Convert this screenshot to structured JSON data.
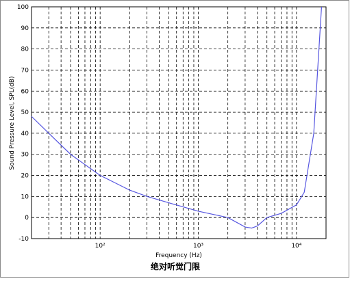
{
  "chart_data": {
    "type": "line",
    "title": "绝对听觉门限",
    "xlabel": "Frequency (Hz)",
    "ylabel": "Sound Pressure Level, SPL(dB)",
    "log_x": true,
    "grid": true,
    "xlim": [
      20,
      20000
    ],
    "ylim": [
      -10,
      100
    ],
    "xticks": [
      {
        "value": 100,
        "label": "10²"
      },
      {
        "value": 1000,
        "label": "10³"
      },
      {
        "value": 10000,
        "label": "10⁴"
      }
    ],
    "xminor": [
      30,
      40,
      50,
      60,
      70,
      80,
      90,
      200,
      300,
      400,
      500,
      600,
      700,
      800,
      900,
      2000,
      3000,
      4000,
      5000,
      6000,
      7000,
      8000,
      9000
    ],
    "yticks": [
      -10,
      0,
      10,
      20,
      30,
      40,
      50,
      60,
      70,
      80,
      90,
      100
    ],
    "series": [
      {
        "color": "#5555e0",
        "x": [
          20,
          30,
          50,
          100,
          200,
          300,
          500,
          1000,
          2000,
          3000,
          3500,
          4000,
          5000,
          7000,
          10000,
          12000,
          15000,
          18000
        ],
        "values": [
          48,
          40,
          30,
          20,
          13,
          10,
          7,
          3,
          0,
          -4.5,
          -5,
          -4,
          0,
          2,
          6,
          12,
          40,
          100
        ]
      }
    ]
  }
}
